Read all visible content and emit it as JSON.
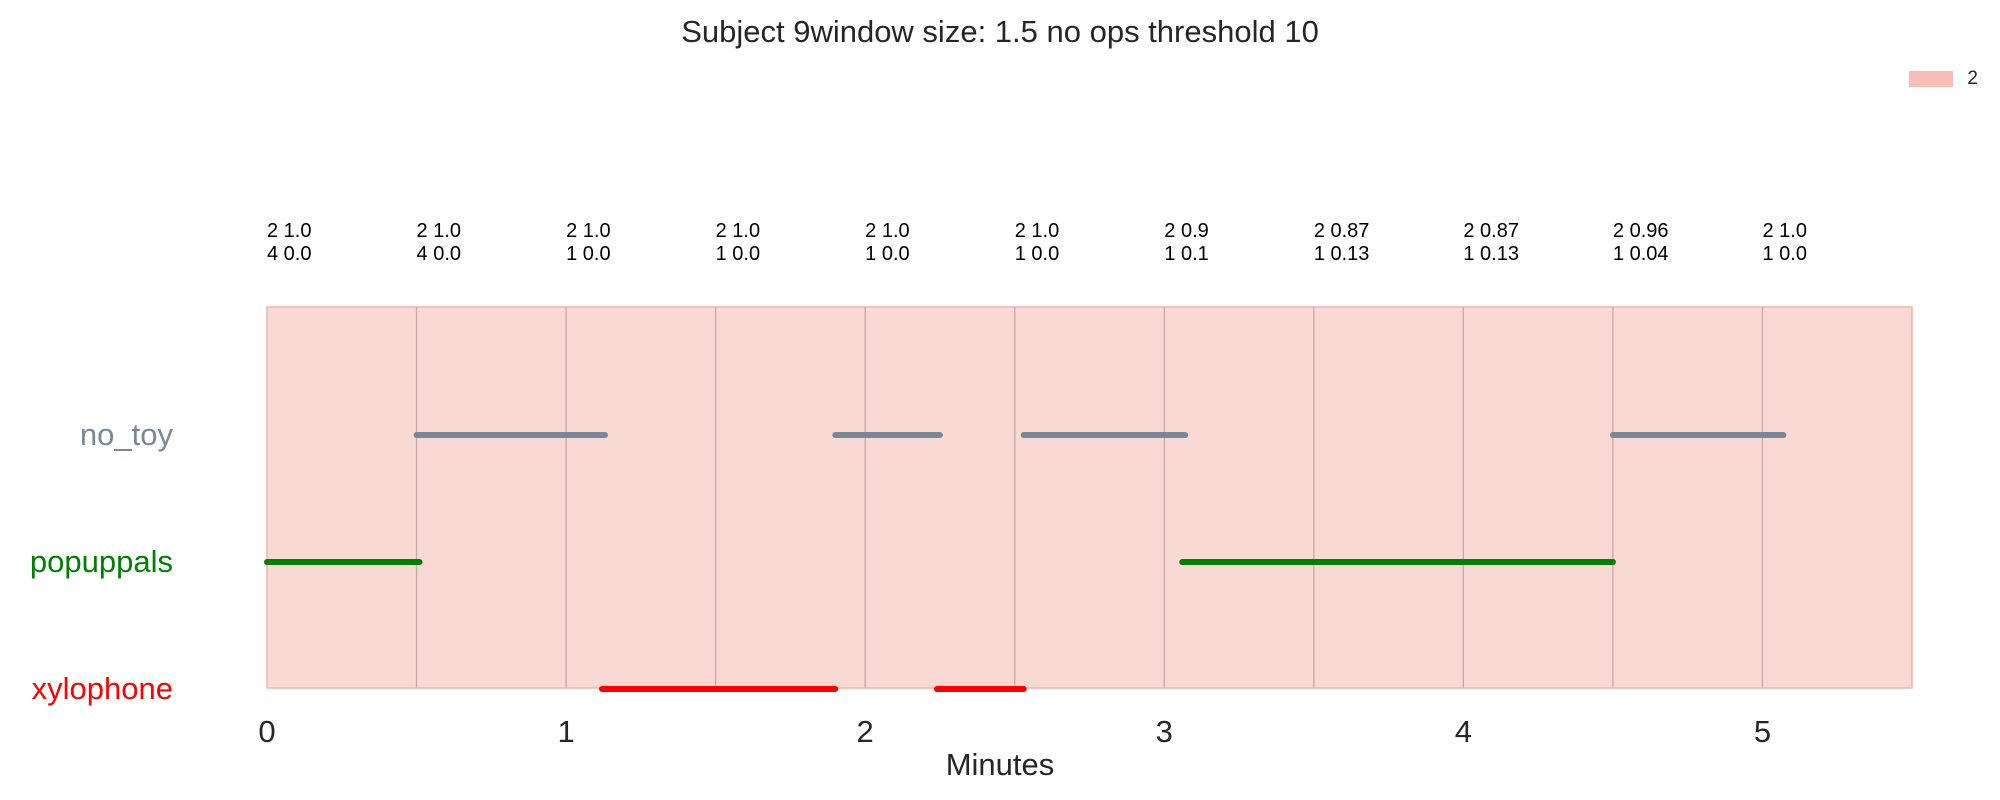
{
  "chart_data": {
    "type": "timeline",
    "title": "Subject 9window size: 1.5 no ops threshold 10",
    "xlabel": "Minutes",
    "xlim": [
      0,
      5.5
    ],
    "xticks": [
      0,
      1,
      2,
      3,
      4,
      5
    ],
    "window_boundaries": [
      0.5,
      1.0,
      1.5,
      2.0,
      2.5,
      3.0,
      3.5,
      4.0,
      4.5,
      5.0
    ],
    "shaded_region": {
      "label": "2",
      "start": 0,
      "end": 5.5,
      "color": "#f4b3a9"
    },
    "legend": {
      "label": "2",
      "placement": "top-right"
    },
    "window_annotations": [
      {
        "x": 0.0,
        "line1": "2 1.0",
        "line2": "4 0.0"
      },
      {
        "x": 0.5,
        "line1": "2 1.0",
        "line2": "4 0.0"
      },
      {
        "x": 1.0,
        "line1": "2 1.0",
        "line2": "1 0.0"
      },
      {
        "x": 1.5,
        "line1": "2 1.0",
        "line2": "1 0.0"
      },
      {
        "x": 2.0,
        "line1": "2 1.0",
        "line2": "1 0.0"
      },
      {
        "x": 2.5,
        "line1": "2 1.0",
        "line2": "1 0.0"
      },
      {
        "x": 3.0,
        "line1": "2 0.9",
        "line2": "1 0.1"
      },
      {
        "x": 3.5,
        "line1": "2 0.87",
        "line2": "1 0.13"
      },
      {
        "x": 4.0,
        "line1": "2 0.87",
        "line2": "1 0.13"
      },
      {
        "x": 4.5,
        "line1": "2 0.96",
        "line2": "1 0.04"
      },
      {
        "x": 5.0,
        "line1": "2 1.0",
        "line2": "1 0.0"
      }
    ],
    "series": [
      {
        "name": "no_toy",
        "color": "#778899",
        "segments": [
          [
            0.5,
            1.13
          ],
          [
            1.9,
            2.25
          ],
          [
            2.53,
            3.07
          ],
          [
            4.5,
            5.07
          ]
        ]
      },
      {
        "name": "popuppals",
        "color": "#008000",
        "segments": [
          [
            0.0,
            0.51
          ],
          [
            3.06,
            4.5
          ]
        ]
      },
      {
        "name": "xylophone",
        "color": "#ff0000",
        "segments": [
          [
            1.12,
            1.9
          ],
          [
            2.24,
            2.53
          ]
        ]
      }
    ]
  }
}
